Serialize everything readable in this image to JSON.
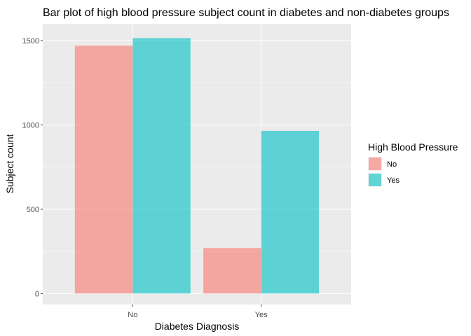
{
  "chart_data": {
    "type": "bar",
    "title": "Bar plot of high blood pressure subject count in diabetes and non-diabetes groups",
    "xlabel": "Diabetes Diagnosis",
    "ylabel": "Subject count",
    "categories": [
      "No",
      "Yes"
    ],
    "series": [
      {
        "name": "No",
        "color": "#F8766D",
        "values": [
          1470,
          270
        ]
      },
      {
        "name": "Yes",
        "color": "#00BFC4",
        "values": [
          1515,
          965
        ]
      }
    ],
    "ylim": [
      -65,
      1600
    ],
    "yticks": [
      0,
      500,
      1000,
      1500
    ],
    "legend_title": "High Blood Pressure",
    "legend_position": "right",
    "grid": true,
    "panel_background": "#EBEBEB",
    "grid_color": "#FFFFFF",
    "bar_opacity": 0.6
  }
}
